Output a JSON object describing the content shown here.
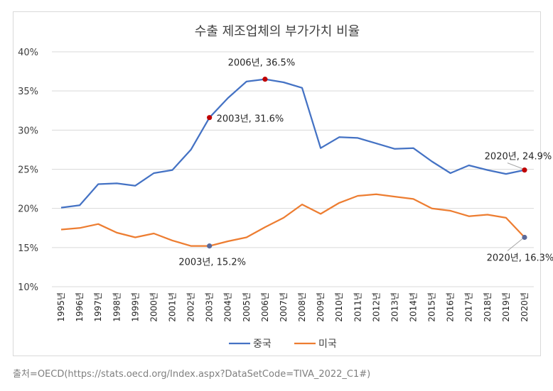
{
  "chart_data": {
    "type": "line",
    "title": "수출 제조업체의 부가가치 비율",
    "categories": [
      "1995년",
      "1996년",
      "1997년",
      "1998년",
      "1999년",
      "2000년",
      "2001년",
      "2002년",
      "2003년",
      "2004년",
      "2005년",
      "2006년",
      "2007년",
      "2008년",
      "2009년",
      "2010년",
      "2011년",
      "2012년",
      "2013년",
      "2014년",
      "2015년",
      "2016년",
      "2017년",
      "2018년",
      "2019년",
      "2020년"
    ],
    "series": [
      {
        "name": "중국",
        "color": "#4472c4",
        "values": [
          20.1,
          20.4,
          23.1,
          23.2,
          22.9,
          24.5,
          24.9,
          27.5,
          31.6,
          34.1,
          36.2,
          36.5,
          36.1,
          35.4,
          27.7,
          29.1,
          29.0,
          28.3,
          27.6,
          27.7,
          26.0,
          24.5,
          25.5,
          24.9,
          24.4,
          24.9
        ]
      },
      {
        "name": "미국",
        "color": "#ed7d31",
        "values": [
          17.3,
          17.5,
          18.0,
          16.9,
          16.3,
          16.8,
          15.9,
          15.2,
          15.2,
          15.8,
          16.3,
          17.6,
          18.8,
          20.5,
          19.3,
          20.7,
          21.6,
          21.8,
          21.5,
          21.2,
          20.0,
          19.7,
          19.0,
          19.2,
          18.8,
          16.3
        ]
      }
    ],
    "yticks": [
      "10%",
      "15%",
      "20%",
      "25%",
      "30%",
      "35%",
      "40%"
    ],
    "ylim": [
      10,
      40
    ],
    "grid": true,
    "legend_position": "bottom",
    "annotations": [
      {
        "series": 0,
        "index": 8,
        "text": "2003년, 31.6%",
        "marker_color": "#c00000"
      },
      {
        "series": 0,
        "index": 11,
        "text": "2006년, 36.5%",
        "marker_color": "#c00000"
      },
      {
        "series": 0,
        "index": 25,
        "text": "2020년, 24.9%",
        "marker_color": "#c00000"
      },
      {
        "series": 1,
        "index": 8,
        "text": "2003년, 15.2%",
        "marker_color": "#5b6a9a"
      },
      {
        "series": 1,
        "index": 25,
        "text": "2020년, 16.3%",
        "marker_color": "#5b6a9a"
      }
    ]
  },
  "source_text": "출처=OECD(https://stats.oecd.org/Index.aspx?DataSetCode=TIVA_2022_C1#)"
}
